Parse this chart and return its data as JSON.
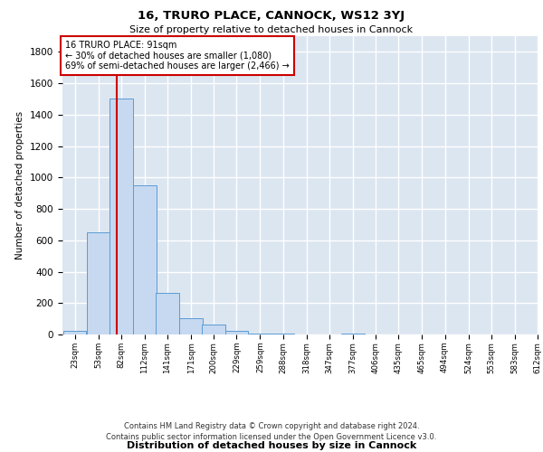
{
  "title1": "16, TRURO PLACE, CANNOCK, WS12 3YJ",
  "title2": "Size of property relative to detached houses in Cannock",
  "xlabel": "Distribution of detached houses by size in Cannock",
  "ylabel": "Number of detached properties",
  "bin_labels": [
    "23sqm",
    "53sqm",
    "82sqm",
    "112sqm",
    "141sqm",
    "171sqm",
    "200sqm",
    "229sqm",
    "259sqm",
    "288sqm",
    "318sqm",
    "347sqm",
    "377sqm",
    "406sqm",
    "435sqm",
    "465sqm",
    "494sqm",
    "524sqm",
    "553sqm",
    "583sqm",
    "612sqm"
  ],
  "bin_edges": [
    23,
    53,
    82,
    112,
    141,
    171,
    200,
    229,
    259,
    288,
    318,
    347,
    377,
    406,
    435,
    465,
    494,
    524,
    553,
    583,
    612
  ],
  "bar_heights": [
    25,
    650,
    1500,
    950,
    265,
    105,
    65,
    25,
    5,
    5,
    0,
    0,
    5,
    0,
    0,
    0,
    0,
    0,
    0,
    0
  ],
  "bar_color": "#c6d9f0",
  "bar_edge_color": "#5b9bd5",
  "property_line_x": 91,
  "annotation_text1": "16 TRURO PLACE: 91sqm",
  "annotation_text2": "← 30% of detached houses are smaller (1,080)",
  "annotation_text3": "69% of semi-detached houses are larger (2,466) →",
  "annotation_box_color": "#ffffff",
  "annotation_border_color": "#cc0000",
  "vline_color": "#cc0000",
  "ylim": [
    0,
    1900
  ],
  "yticks": [
    0,
    200,
    400,
    600,
    800,
    1000,
    1200,
    1400,
    1600,
    1800
  ],
  "grid_color": "#ffffff",
  "bg_color": "#dce6f1",
  "footnote1": "Contains HM Land Registry data © Crown copyright and database right 2024.",
  "footnote2": "Contains public sector information licensed under the Open Government Licence v3.0."
}
